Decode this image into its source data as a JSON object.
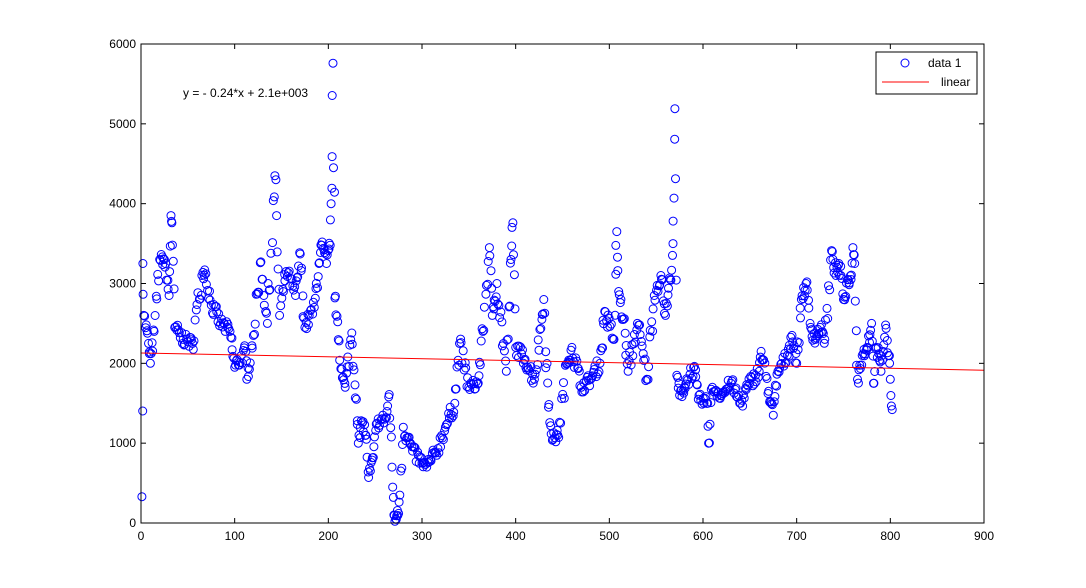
{
  "chart_data": {
    "type": "scatter",
    "title": "",
    "xlabel": "",
    "ylabel": "",
    "xlim": [
      0,
      900
    ],
    "ylim": [
      0,
      6000
    ],
    "xticks": [
      0,
      100,
      200,
      300,
      400,
      500,
      600,
      700,
      800,
      900
    ],
    "yticks": [
      0,
      1000,
      2000,
      3000,
      4000,
      5000,
      6000
    ],
    "grid": false,
    "legend_position": "top-right",
    "annotation": "y = - 0.24*x + 2.1e+003",
    "colors": {
      "markers": "#0000ff",
      "fit_line": "#ff0000",
      "axes": "#000000"
    },
    "series": [
      {
        "name": "data 1",
        "marker": "open-circle",
        "key_points": [
          [
            1,
            330
          ],
          [
            2,
            3250
          ],
          [
            3,
            2600
          ],
          [
            8,
            2250
          ],
          [
            10,
            2000
          ],
          [
            14,
            2400
          ],
          [
            20,
            3300
          ],
          [
            25,
            3300
          ],
          [
            30,
            2850
          ],
          [
            32,
            3850
          ],
          [
            33,
            3760
          ],
          [
            36,
            2450
          ],
          [
            45,
            2300
          ],
          [
            55,
            2250
          ],
          [
            65,
            3100
          ],
          [
            68,
            3170
          ],
          [
            75,
            2730
          ],
          [
            85,
            2500
          ],
          [
            95,
            2400
          ],
          [
            100,
            1950
          ],
          [
            112,
            2150
          ],
          [
            113,
            1800
          ],
          [
            120,
            2350
          ],
          [
            128,
            3270
          ],
          [
            135,
            2500
          ],
          [
            143,
            4350
          ],
          [
            148,
            2600
          ],
          [
            155,
            3150
          ],
          [
            165,
            2850
          ],
          [
            170,
            3370
          ],
          [
            175,
            2450
          ],
          [
            185,
            2700
          ],
          [
            190,
            3250
          ],
          [
            193,
            3480
          ],
          [
            198,
            3250
          ],
          [
            202,
            3480
          ],
          [
            203,
            4000
          ],
          [
            204,
            4590
          ],
          [
            205,
            5760
          ],
          [
            207,
            2820
          ],
          [
            210,
            2520
          ],
          [
            215,
            1820
          ],
          [
            218,
            1700
          ],
          [
            225,
            2380
          ],
          [
            230,
            1550
          ],
          [
            232,
            1000
          ],
          [
            237,
            1270
          ],
          [
            240,
            1100
          ],
          [
            243,
            570
          ],
          [
            248,
            820
          ],
          [
            252,
            1250
          ],
          [
            262,
            1320
          ],
          [
            265,
            1610
          ],
          [
            268,
            700
          ],
          [
            270,
            100
          ],
          [
            272,
            50
          ],
          [
            273,
            90
          ],
          [
            275,
            120
          ],
          [
            280,
            1200
          ],
          [
            290,
            900
          ],
          [
            300,
            750
          ],
          [
            305,
            700
          ],
          [
            315,
            880
          ],
          [
            325,
            1200
          ],
          [
            335,
            1500
          ],
          [
            340,
            2250
          ],
          [
            350,
            1700
          ],
          [
            360,
            1750
          ],
          [
            365,
            2400
          ],
          [
            372,
            3450
          ],
          [
            375,
            2600
          ],
          [
            380,
            3000
          ],
          [
            390,
            1900
          ],
          [
            395,
            3300
          ],
          [
            397,
            3760
          ],
          [
            400,
            2200
          ],
          [
            410,
            2050
          ],
          [
            420,
            1800
          ],
          [
            428,
            2550
          ],
          [
            430,
            2800
          ],
          [
            435,
            1450
          ],
          [
            440,
            1050
          ],
          [
            445,
            1100
          ],
          [
            455,
            2000
          ],
          [
            460,
            2200
          ],
          [
            470,
            1700
          ],
          [
            480,
            1800
          ],
          [
            490,
            2000
          ],
          [
            495,
            2650
          ],
          [
            505,
            2300
          ],
          [
            508,
            3650
          ],
          [
            510,
            2900
          ],
          [
            515,
            2550
          ],
          [
            520,
            1900
          ],
          [
            530,
            2500
          ],
          [
            540,
            1800
          ],
          [
            548,
            2850
          ],
          [
            555,
            3100
          ],
          [
            560,
            2600
          ],
          [
            565,
            3050
          ],
          [
            568,
            3500
          ],
          [
            569,
            4070
          ],
          [
            570,
            5190
          ],
          [
            572,
            1850
          ],
          [
            575,
            1600
          ],
          [
            580,
            1700
          ],
          [
            590,
            1950
          ],
          [
            595,
            1550
          ],
          [
            605,
            1500
          ],
          [
            606,
            1000
          ],
          [
            610,
            1700
          ],
          [
            620,
            1600
          ],
          [
            630,
            1750
          ],
          [
            640,
            1500
          ],
          [
            650,
            1750
          ],
          [
            660,
            1900
          ],
          [
            662,
            2150
          ],
          [
            670,
            1650
          ],
          [
            675,
            1350
          ],
          [
            680,
            1900
          ],
          [
            690,
            2100
          ],
          [
            695,
            2350
          ],
          [
            700,
            2000
          ],
          [
            705,
            2800
          ],
          [
            710,
            3000
          ],
          [
            715,
            2450
          ],
          [
            720,
            2300
          ],
          [
            725,
            2450
          ],
          [
            730,
            2300
          ],
          [
            738,
            3400
          ],
          [
            742,
            3100
          ],
          [
            745,
            3250
          ],
          [
            750,
            2800
          ],
          [
            755,
            3050
          ],
          [
            758,
            3050
          ],
          [
            760,
            3450
          ],
          [
            762,
            3250
          ],
          [
            765,
            1800
          ],
          [
            770,
            2100
          ],
          [
            775,
            2200
          ],
          [
            780,
            2500
          ],
          [
            782,
            1750
          ],
          [
            785,
            2200
          ],
          [
            790,
            1900
          ],
          [
            795,
            2480
          ],
          [
            798,
            2100
          ],
          [
            800,
            1800
          ],
          [
            802,
            1420
          ]
        ]
      },
      {
        "name": "linear",
        "type": "line",
        "equation": "y = -0.24*x + 2.1e+003",
        "slope": -0.24,
        "intercept": 2130,
        "x": [
          0,
          900
        ],
        "y": [
          2130,
          1914
        ]
      }
    ]
  }
}
